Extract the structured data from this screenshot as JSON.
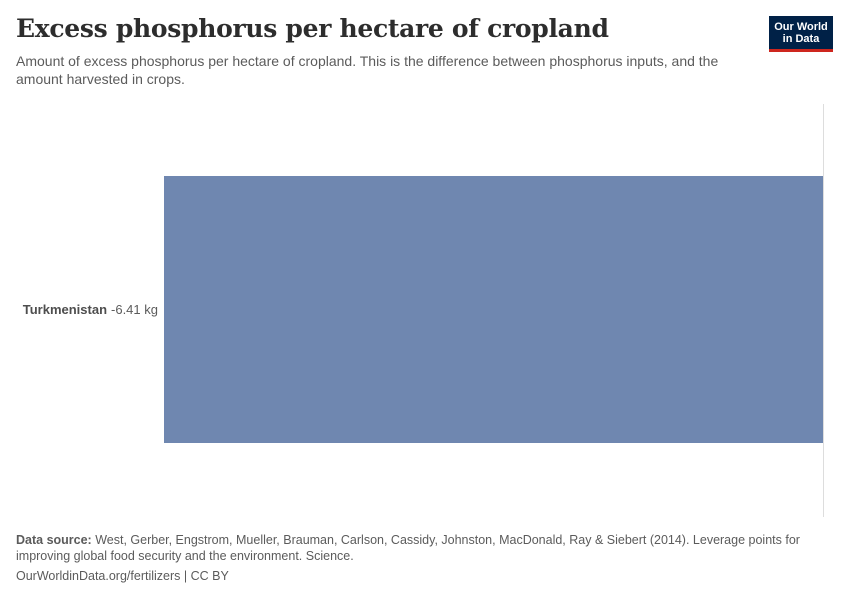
{
  "header": {
    "title": "Excess phosphorus per hectare of cropland",
    "subtitle": "Amount of excess phosphorus per hectare of cropland. This is the difference between phosphorus inputs, and the amount harvested in crops."
  },
  "logo": {
    "line1": "Our World",
    "line2": "in Data",
    "bg_color": "#002147",
    "accent_color": "#ce261e"
  },
  "footer": {
    "source_label": "Data source:",
    "source_text": " West, Gerber, Engstrom, Mueller, Brauman, Carlson, Cassidy, Johnston, MacDonald, Ray & Siebert (2014). Leverage points for improving global food security and the environment. Science.",
    "url_text": "OurWorldinData.org/fertilizers | CC BY"
  },
  "chart_data": {
    "type": "bar",
    "orientation": "horizontal",
    "title": "Excess phosphorus per hectare of cropland",
    "subtitle": "Amount of excess phosphorus per hectare of cropland. This is the difference between phosphorus inputs, and the amount harvested in crops.",
    "categories": [
      "Turkmenistan"
    ],
    "values": [
      -6.41
    ],
    "unit": "kg",
    "value_labels": [
      "-6.41 kg"
    ],
    "bar_color": "#6d87b0",
    "xlabel": "",
    "ylabel": "",
    "grid": false,
    "legend": null,
    "zero_line": true
  },
  "bars": [
    {
      "entity": "Turkmenistan",
      "value_label": "-6.41 kg",
      "color": "#6f87b0"
    }
  ]
}
